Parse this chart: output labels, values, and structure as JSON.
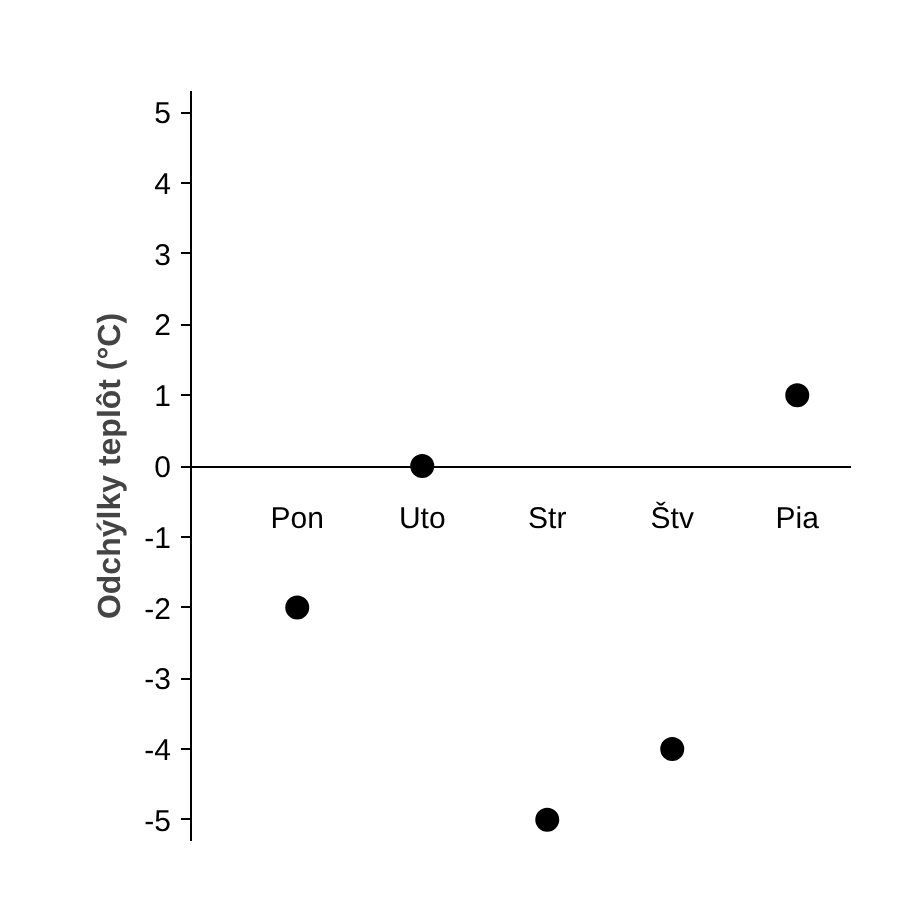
{
  "chart_data": {
    "type": "scatter",
    "ylabel": "Odchýlky teplôt (°C)",
    "categories": [
      "Pon",
      "Uto",
      "Str",
      "Štv",
      "Pia"
    ],
    "values": [
      -2,
      0,
      -5,
      -4,
      1
    ],
    "color": "#000000",
    "marker": "circle",
    "ylim": [
      -5.3,
      5.3
    ],
    "yticks": [
      -5,
      -4,
      -3,
      -2,
      -1,
      0,
      1,
      2,
      3,
      4,
      5
    ],
    "grid": false
  }
}
